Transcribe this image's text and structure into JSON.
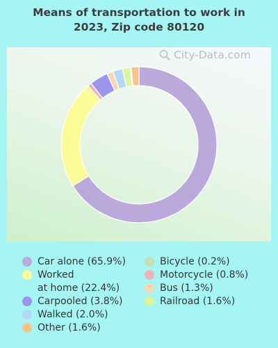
{
  "title_line1": "Means of transportation to work in",
  "title_line2": "2023, Zip code 80120",
  "watermark": "City-Data.com",
  "chart_data": {
    "type": "pie",
    "donut": true,
    "title": "Means of transportation to work in 2023, Zip code 80120",
    "slices": [
      {
        "label": "Car alone",
        "value": 65.9,
        "display": "Car alone (65.9%)",
        "color": "#bca9db"
      },
      {
        "label": "Worked at home",
        "value": 22.4,
        "display": "Worked\nat home (22.4%)",
        "color": "#fbfb97"
      },
      {
        "label": "Motorcycle",
        "value": 0.8,
        "display": "Motorcycle (0.8%)",
        "color": "#f0b2b8"
      },
      {
        "label": "Carpooled",
        "value": 3.8,
        "display": "Carpooled (3.8%)",
        "color": "#9c95ee"
      },
      {
        "label": "Bus",
        "value": 1.3,
        "display": "Bus (1.3%)",
        "color": "#f9d7b5"
      },
      {
        "label": "Walked",
        "value": 2.0,
        "display": "Walked (2.0%)",
        "color": "#b4d8f5"
      },
      {
        "label": "Railroad",
        "value": 1.6,
        "display": "Railroad (1.6%)",
        "color": "#dcf59a"
      },
      {
        "label": "Bicycle",
        "value": 0.2,
        "display": "Bicycle (0.2%)",
        "color": "#c6dfb0"
      },
      {
        "label": "Other",
        "value": 1.6,
        "display": "Other (1.6%)",
        "color": "#f6c38a"
      }
    ],
    "legend_order_left": [
      "Car alone",
      "Worked at home",
      "Carpooled",
      "Walked",
      "Other"
    ],
    "legend_order_right": [
      "Bicycle",
      "Motorcycle",
      "Bus",
      "Railroad"
    ],
    "legend_placement": "bottom"
  }
}
